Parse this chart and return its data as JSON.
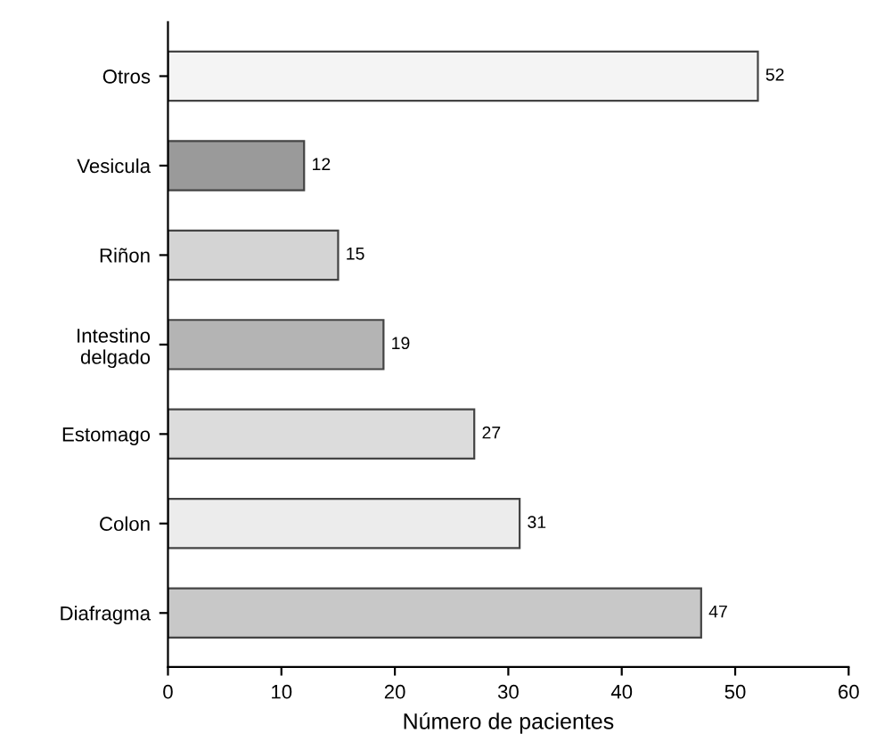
{
  "chart_data": {
    "type": "bar",
    "orientation": "horizontal",
    "xlabel": "Número de pacientes",
    "categories": [
      "Otros",
      "Vesicula",
      "Riñon",
      "Intestino\ndelgado",
      "Estomago",
      "Colon",
      "Diafragma"
    ],
    "values": [
      52,
      12,
      15,
      19,
      27,
      31,
      47
    ],
    "colors": [
      "#f4f4f4",
      "#9a9a9a",
      "#d4d4d4",
      "#b4b4b4",
      "#dcdcdc",
      "#ececec",
      "#c8c8c8"
    ],
    "data_labels": true,
    "xlim": [
      0,
      60
    ],
    "xticks": [
      0,
      10,
      20,
      30,
      40,
      50,
      60
    ],
    "grid": false
  }
}
